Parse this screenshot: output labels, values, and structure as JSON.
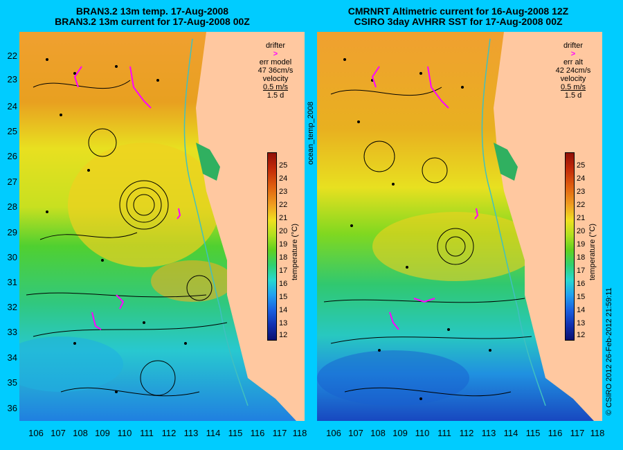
{
  "left_title": {
    "line1": "BRAN3.2 13m temp. 17-Aug-2008",
    "line2": "BRAN3.2 13m current for 17-Aug-2008 00Z"
  },
  "right_title": {
    "line1": "CMRNRT Altimetric current for 16-Aug-2008 12Z",
    "line2": "CSIRO 3day AVHRR SST for 17-Aug-2008 00Z"
  },
  "lat_labels": [
    "22",
    "23",
    "24",
    "25",
    "26",
    "27",
    "28",
    "29",
    "30",
    "31",
    "32",
    "33",
    "34",
    "35",
    "36"
  ],
  "lon_labels": [
    "106",
    "107",
    "108",
    "109",
    "110",
    "111",
    "112",
    "113",
    "114",
    "115",
    "116",
    "117",
    "118"
  ],
  "left_legend": {
    "drifter": "drifter",
    "err_label": "err model",
    "err_value": "47 36cm/s",
    "velocity": "velocity",
    "speed": "0.5 m/s",
    "duration": "1.5 d"
  },
  "right_legend": {
    "drifter": "drifter",
    "err_label": "err alt",
    "err_value": "42 24cm/s",
    "velocity": "velocity",
    "speed": "0.5 m/s",
    "duration": "1.5 d"
  },
  "colorbar": {
    "ticks": [
      "25",
      "24",
      "23",
      "22",
      "21",
      "20",
      "19",
      "18",
      "17",
      "16",
      "15",
      "14",
      "13",
      "12"
    ],
    "unit": "temperature (°C)"
  },
  "side_label": "ocean_temp_2008",
  "credit": "© CSIRO 2012   26-Feb-2012 21:59:11",
  "colors": {
    "background": "#00ccff",
    "land": "#ffc8a0",
    "drifter": "#ff00ff",
    "isobath": "#40c0c0"
  }
}
